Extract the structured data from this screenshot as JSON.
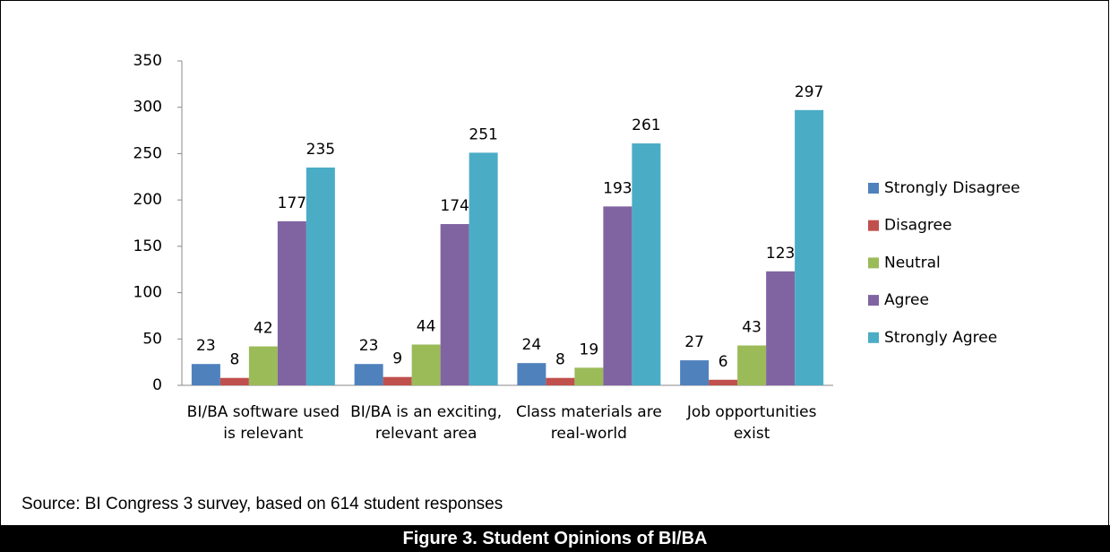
{
  "chart_data": {
    "type": "bar",
    "title": "Figure 3. Student Opinions of BI/BA",
    "note": "Source: BI Congress 3 survey, based on 614 student responses",
    "categories": [
      "BI/BA software used is relevant",
      "BI/BA is an exciting, relevant area",
      "Class materials are real-world",
      "Job opportunities exist"
    ],
    "series": [
      {
        "name": "Strongly Disagree",
        "color": "#4f81bd",
        "values": [
          23,
          23,
          24,
          27
        ]
      },
      {
        "name": "Disagree",
        "color": "#c0504d",
        "values": [
          8,
          9,
          8,
          6
        ]
      },
      {
        "name": "Neutral",
        "color": "#9bbb59",
        "values": [
          42,
          44,
          19,
          43
        ]
      },
      {
        "name": "Agree",
        "color": "#8064a2",
        "values": [
          177,
          174,
          193,
          123
        ]
      },
      {
        "name": "Strongly Agree",
        "color": "#4bacc6",
        "values": [
          235,
          251,
          261,
          297
        ]
      }
    ],
    "ylim": [
      0,
      350
    ],
    "yticks": [
      0,
      50,
      100,
      150,
      200,
      250,
      300,
      350
    ],
    "grid": false,
    "legend": "right"
  }
}
